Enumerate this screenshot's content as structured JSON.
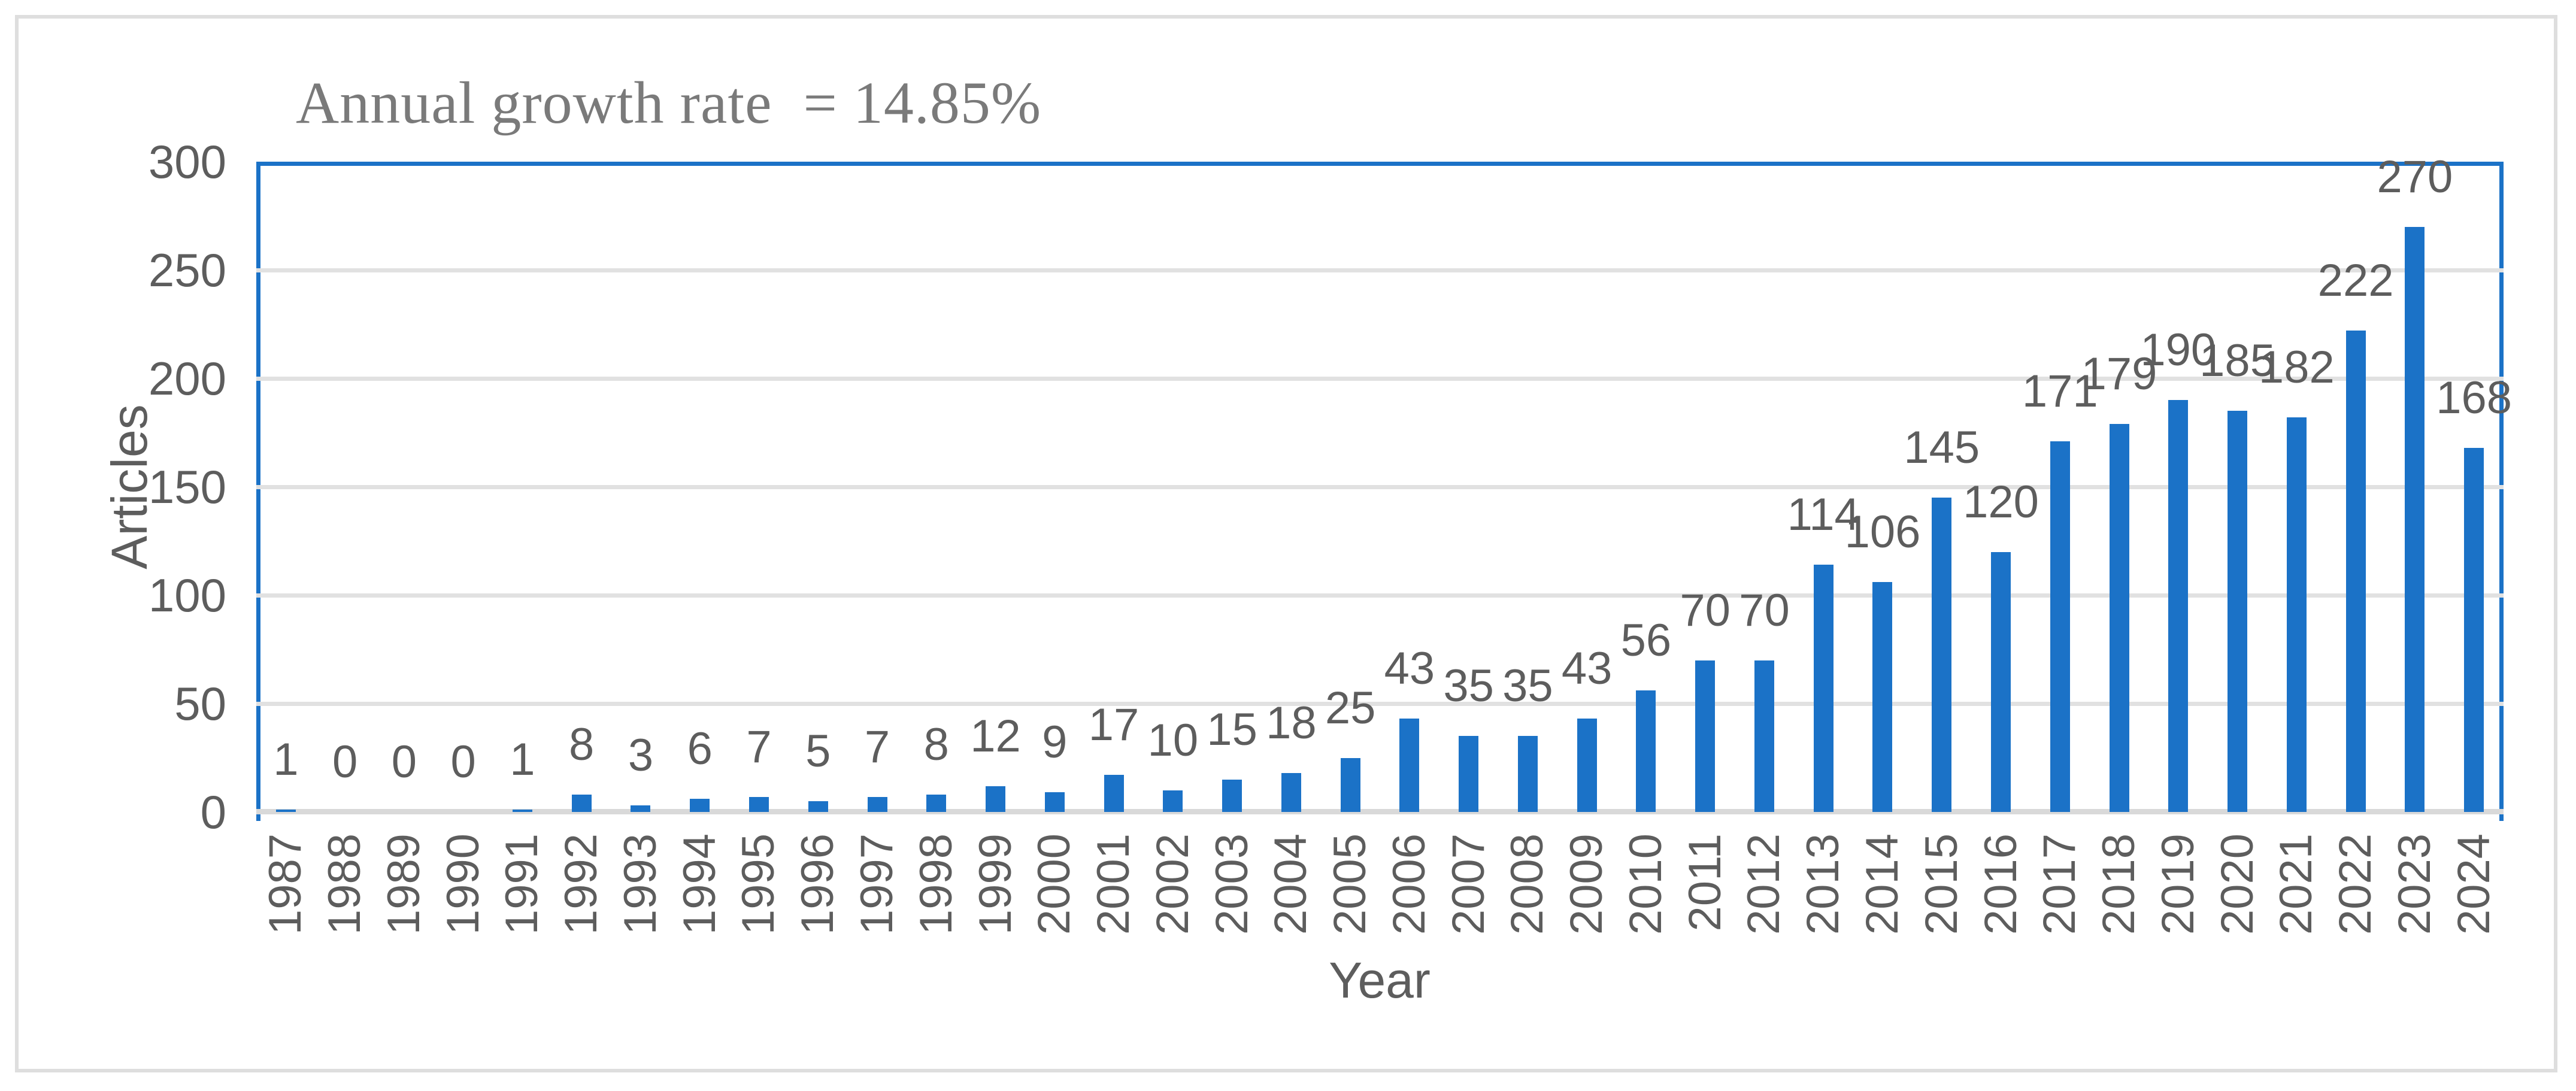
{
  "figure": {
    "title": "Annual growth rate  = 14.85%"
  },
  "chart_data": {
    "type": "bar",
    "title": "Annual growth rate = 14.85%",
    "xlabel": "Year",
    "ylabel": "Articles",
    "categories": [
      "1987",
      "1988",
      "1989",
      "1990",
      "1991",
      "1992",
      "1993",
      "1994",
      "1995",
      "1996",
      "1997",
      "1998",
      "1999",
      "2000",
      "2001",
      "2002",
      "2003",
      "2004",
      "2005",
      "2006",
      "2007",
      "2008",
      "2009",
      "2010",
      "2011",
      "2012",
      "2013",
      "2014",
      "2015",
      "2016",
      "2017",
      "2018",
      "2019",
      "2020",
      "2021",
      "2022",
      "2023",
      "2024"
    ],
    "values": [
      1,
      0,
      0,
      0,
      1,
      8,
      3,
      6,
      7,
      5,
      7,
      8,
      12,
      9,
      17,
      10,
      15,
      18,
      25,
      43,
      35,
      35,
      43,
      56,
      70,
      70,
      114,
      106,
      145,
      120,
      171,
      179,
      190,
      185,
      182,
      222,
      270,
      168
    ],
    "data_labels": [
      1,
      0,
      0,
      0,
      1,
      8,
      3,
      6,
      7,
      5,
      7,
      8,
      12,
      9,
      17,
      10,
      15,
      18,
      25,
      43,
      35,
      35,
      43,
      56,
      70,
      70,
      114,
      106,
      145,
      120,
      171,
      179,
      190,
      185,
      182,
      222,
      270,
      168
    ],
    "ylim": [
      0,
      300
    ],
    "yticks": [
      0,
      50,
      100,
      150,
      200,
      250,
      300
    ],
    "grid": true,
    "legend": false,
    "colors": {
      "bar": "#1b72c7",
      "axis_line": "#1b72c7",
      "baseline": "#d9d9d9",
      "gridline": "#e1e1e1",
      "tick_label": "#5d5d5d",
      "title": "#7a7a7a"
    }
  }
}
